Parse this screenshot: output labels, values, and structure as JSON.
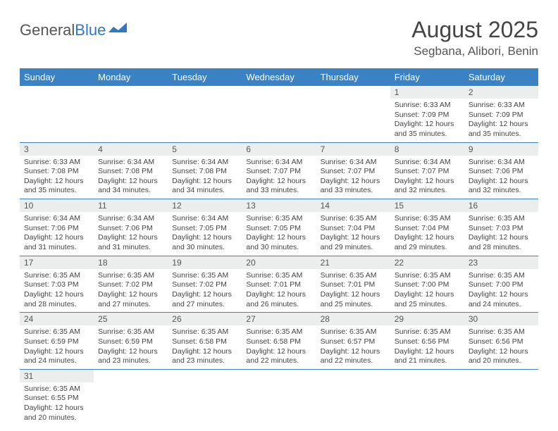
{
  "logo": {
    "text1": "General",
    "text2": "Blue"
  },
  "title": "August 2025",
  "location": "Segbana, Alibori, Benin",
  "colors": {
    "header_bg": "#3b82c4",
    "header_text": "#ffffff",
    "daynum_bg": "#eceded",
    "row_divider": "#3b82c4",
    "logo_blue": "#2f78c4"
  },
  "weekdays": [
    "Sunday",
    "Monday",
    "Tuesday",
    "Wednesday",
    "Thursday",
    "Friday",
    "Saturday"
  ],
  "cells": [
    [
      null,
      null,
      null,
      null,
      null,
      {
        "n": "1",
        "sr": "Sunrise: 6:33 AM",
        "ss": "Sunset: 7:09 PM",
        "dl1": "Daylight: 12 hours",
        "dl2": "and 35 minutes."
      },
      {
        "n": "2",
        "sr": "Sunrise: 6:33 AM",
        "ss": "Sunset: 7:09 PM",
        "dl1": "Daylight: 12 hours",
        "dl2": "and 35 minutes."
      }
    ],
    [
      {
        "n": "3",
        "sr": "Sunrise: 6:33 AM",
        "ss": "Sunset: 7:08 PM",
        "dl1": "Daylight: 12 hours",
        "dl2": "and 35 minutes."
      },
      {
        "n": "4",
        "sr": "Sunrise: 6:34 AM",
        "ss": "Sunset: 7:08 PM",
        "dl1": "Daylight: 12 hours",
        "dl2": "and 34 minutes."
      },
      {
        "n": "5",
        "sr": "Sunrise: 6:34 AM",
        "ss": "Sunset: 7:08 PM",
        "dl1": "Daylight: 12 hours",
        "dl2": "and 34 minutes."
      },
      {
        "n": "6",
        "sr": "Sunrise: 6:34 AM",
        "ss": "Sunset: 7:07 PM",
        "dl1": "Daylight: 12 hours",
        "dl2": "and 33 minutes."
      },
      {
        "n": "7",
        "sr": "Sunrise: 6:34 AM",
        "ss": "Sunset: 7:07 PM",
        "dl1": "Daylight: 12 hours",
        "dl2": "and 33 minutes."
      },
      {
        "n": "8",
        "sr": "Sunrise: 6:34 AM",
        "ss": "Sunset: 7:07 PM",
        "dl1": "Daylight: 12 hours",
        "dl2": "and 32 minutes."
      },
      {
        "n": "9",
        "sr": "Sunrise: 6:34 AM",
        "ss": "Sunset: 7:06 PM",
        "dl1": "Daylight: 12 hours",
        "dl2": "and 32 minutes."
      }
    ],
    [
      {
        "n": "10",
        "sr": "Sunrise: 6:34 AM",
        "ss": "Sunset: 7:06 PM",
        "dl1": "Daylight: 12 hours",
        "dl2": "and 31 minutes."
      },
      {
        "n": "11",
        "sr": "Sunrise: 6:34 AM",
        "ss": "Sunset: 7:06 PM",
        "dl1": "Daylight: 12 hours",
        "dl2": "and 31 minutes."
      },
      {
        "n": "12",
        "sr": "Sunrise: 6:34 AM",
        "ss": "Sunset: 7:05 PM",
        "dl1": "Daylight: 12 hours",
        "dl2": "and 30 minutes."
      },
      {
        "n": "13",
        "sr": "Sunrise: 6:35 AM",
        "ss": "Sunset: 7:05 PM",
        "dl1": "Daylight: 12 hours",
        "dl2": "and 30 minutes."
      },
      {
        "n": "14",
        "sr": "Sunrise: 6:35 AM",
        "ss": "Sunset: 7:04 PM",
        "dl1": "Daylight: 12 hours",
        "dl2": "and 29 minutes."
      },
      {
        "n": "15",
        "sr": "Sunrise: 6:35 AM",
        "ss": "Sunset: 7:04 PM",
        "dl1": "Daylight: 12 hours",
        "dl2": "and 29 minutes."
      },
      {
        "n": "16",
        "sr": "Sunrise: 6:35 AM",
        "ss": "Sunset: 7:03 PM",
        "dl1": "Daylight: 12 hours",
        "dl2": "and 28 minutes."
      }
    ],
    [
      {
        "n": "17",
        "sr": "Sunrise: 6:35 AM",
        "ss": "Sunset: 7:03 PM",
        "dl1": "Daylight: 12 hours",
        "dl2": "and 28 minutes."
      },
      {
        "n": "18",
        "sr": "Sunrise: 6:35 AM",
        "ss": "Sunset: 7:02 PM",
        "dl1": "Daylight: 12 hours",
        "dl2": "and 27 minutes."
      },
      {
        "n": "19",
        "sr": "Sunrise: 6:35 AM",
        "ss": "Sunset: 7:02 PM",
        "dl1": "Daylight: 12 hours",
        "dl2": "and 27 minutes."
      },
      {
        "n": "20",
        "sr": "Sunrise: 6:35 AM",
        "ss": "Sunset: 7:01 PM",
        "dl1": "Daylight: 12 hours",
        "dl2": "and 26 minutes."
      },
      {
        "n": "21",
        "sr": "Sunrise: 6:35 AM",
        "ss": "Sunset: 7:01 PM",
        "dl1": "Daylight: 12 hours",
        "dl2": "and 25 minutes."
      },
      {
        "n": "22",
        "sr": "Sunrise: 6:35 AM",
        "ss": "Sunset: 7:00 PM",
        "dl1": "Daylight: 12 hours",
        "dl2": "and 25 minutes."
      },
      {
        "n": "23",
        "sr": "Sunrise: 6:35 AM",
        "ss": "Sunset: 7:00 PM",
        "dl1": "Daylight: 12 hours",
        "dl2": "and 24 minutes."
      }
    ],
    [
      {
        "n": "24",
        "sr": "Sunrise: 6:35 AM",
        "ss": "Sunset: 6:59 PM",
        "dl1": "Daylight: 12 hours",
        "dl2": "and 24 minutes."
      },
      {
        "n": "25",
        "sr": "Sunrise: 6:35 AM",
        "ss": "Sunset: 6:59 PM",
        "dl1": "Daylight: 12 hours",
        "dl2": "and 23 minutes."
      },
      {
        "n": "26",
        "sr": "Sunrise: 6:35 AM",
        "ss": "Sunset: 6:58 PM",
        "dl1": "Daylight: 12 hours",
        "dl2": "and 23 minutes."
      },
      {
        "n": "27",
        "sr": "Sunrise: 6:35 AM",
        "ss": "Sunset: 6:58 PM",
        "dl1": "Daylight: 12 hours",
        "dl2": "and 22 minutes."
      },
      {
        "n": "28",
        "sr": "Sunrise: 6:35 AM",
        "ss": "Sunset: 6:57 PM",
        "dl1": "Daylight: 12 hours",
        "dl2": "and 22 minutes."
      },
      {
        "n": "29",
        "sr": "Sunrise: 6:35 AM",
        "ss": "Sunset: 6:56 PM",
        "dl1": "Daylight: 12 hours",
        "dl2": "and 21 minutes."
      },
      {
        "n": "30",
        "sr": "Sunrise: 6:35 AM",
        "ss": "Sunset: 6:56 PM",
        "dl1": "Daylight: 12 hours",
        "dl2": "and 20 minutes."
      }
    ],
    [
      {
        "n": "31",
        "sr": "Sunrise: 6:35 AM",
        "ss": "Sunset: 6:55 PM",
        "dl1": "Daylight: 12 hours",
        "dl2": "and 20 minutes."
      },
      null,
      null,
      null,
      null,
      null,
      null
    ]
  ]
}
